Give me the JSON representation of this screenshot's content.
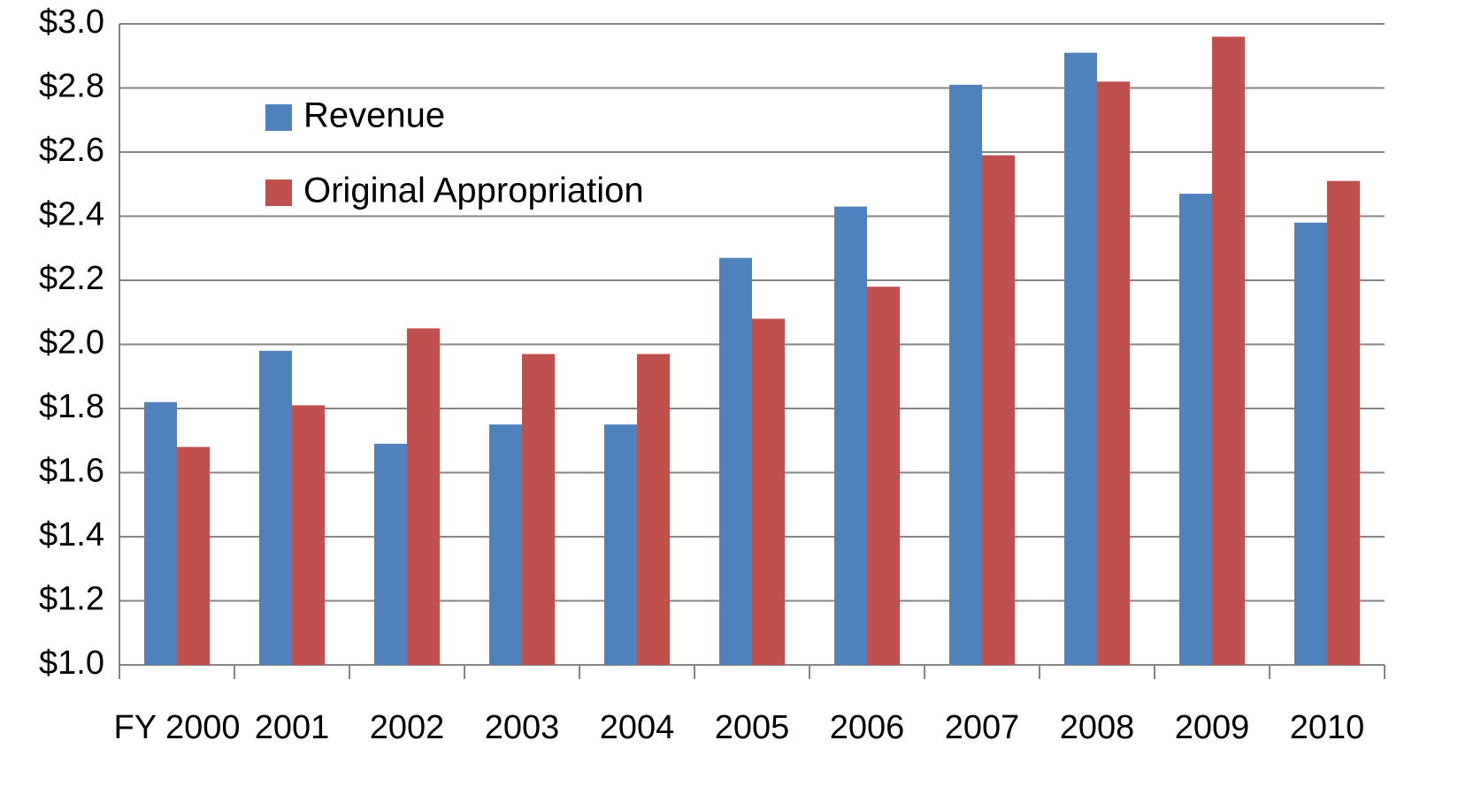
{
  "chart_data": {
    "type": "bar",
    "categories": [
      "FY 2000",
      "2001",
      "2002",
      "2003",
      "2004",
      "2005",
      "2006",
      "2007",
      "2008",
      "2009",
      "2010"
    ],
    "series": [
      {
        "name": "Revenue",
        "color": "#4f81bd",
        "values": [
          1.82,
          1.98,
          1.69,
          1.75,
          1.75,
          2.27,
          2.43,
          2.81,
          2.91,
          2.47,
          2.38
        ]
      },
      {
        "name": "Original Appropriation",
        "color": "#c0504d",
        "values": [
          1.68,
          1.81,
          2.05,
          1.97,
          1.97,
          2.08,
          2.18,
          2.59,
          2.82,
          2.96,
          2.51
        ]
      }
    ],
    "ylim": [
      1.0,
      3.0
    ],
    "yticks": [
      {
        "value": 1.0,
        "label": "$1.0"
      },
      {
        "value": 1.2,
        "label": "$1.2"
      },
      {
        "value": 1.4,
        "label": "$1.4"
      },
      {
        "value": 1.6,
        "label": "$1.6"
      },
      {
        "value": 1.8,
        "label": "$1.8"
      },
      {
        "value": 2.0,
        "label": "$2.0"
      },
      {
        "value": 2.2,
        "label": "$2.2"
      },
      {
        "value": 2.4,
        "label": "$2.4"
      },
      {
        "value": 2.6,
        "label": "$2.6"
      },
      {
        "value": 2.8,
        "label": "$2.8"
      },
      {
        "value": 3.0,
        "label": "$3.0"
      }
    ],
    "grid": true
  }
}
